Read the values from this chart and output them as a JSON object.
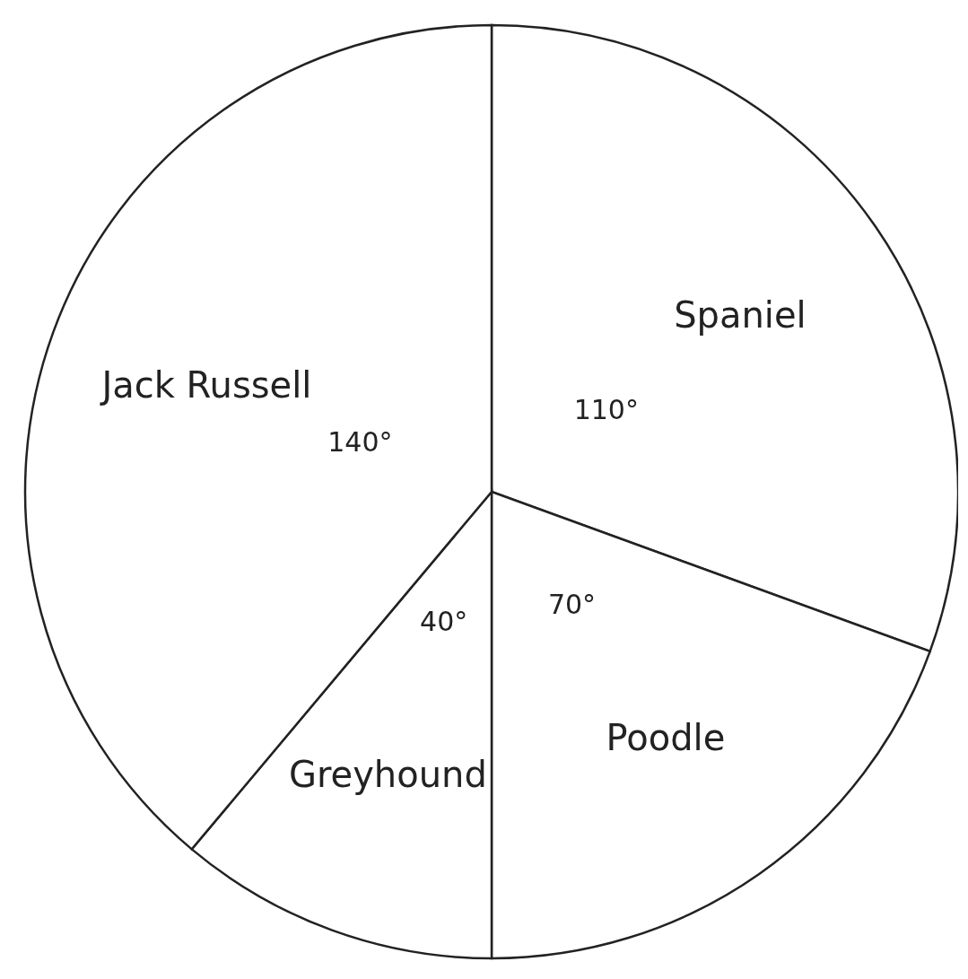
{
  "chart_data": {
    "type": "pie",
    "categories": [
      "Spaniel",
      "Poodle",
      "Greyhound",
      "Jack Russell"
    ],
    "values": [
      110,
      70,
      40,
      140
    ],
    "value_labels": [
      "110°",
      "70°",
      "40°",
      "140°"
    ],
    "colors": [
      "#ffffff",
      "#ffffff",
      "#ffffff",
      "#ffffff"
    ]
  }
}
